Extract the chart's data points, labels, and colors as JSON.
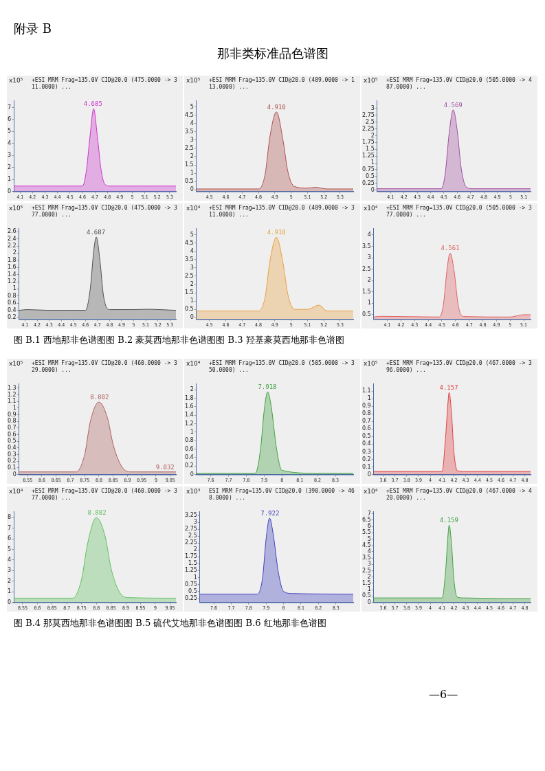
{
  "chart_data": [
    {
      "type": "area",
      "title": "+ESI MRM Frag=135.0V CID@20.0 (475.0000 -> 311.0000) ...",
      "ylabel": "x10⁵",
      "xlim": [
        4.05,
        5.35
      ],
      "ylim": [
        0,
        7.6
      ],
      "xticks": [
        4.1,
        4.2,
        4.3,
        4.4,
        4.5,
        4.6,
        4.7,
        4.8,
        4.9,
        5,
        5.1,
        5.2,
        5.3
      ],
      "yticks": [
        0,
        1,
        2,
        3,
        4,
        5,
        6,
        7
      ],
      "annotations": [
        "附录 B",
        "那非类标准品色谱图",
        {
          "text": "4.685",
          "x": 4.685,
          "y": 6.9
        }
      ],
      "series": [
        {
          "color": "#cc33cc",
          "x": [
            4.05,
            4.5,
            4.6,
            4.63,
            4.66,
            4.69,
            4.72,
            4.75,
            4.78,
            4.82,
            4.9,
            5.35
          ],
          "values": [
            0.45,
            0.45,
            0.45,
            1.6,
            4.5,
            6.9,
            4.6,
            1.8,
            0.6,
            0.45,
            0.45,
            0.45
          ]
        }
      ]
    },
    {
      "type": "area",
      "title": "+ESI MRM Frag=135.0V CID@20.0 (489.0000 -> 113.0000) ...",
      "ylabel": "x10⁵",
      "xlim": [
        4.42,
        5.38
      ],
      "ylim": [
        -0.1,
        5.4
      ],
      "xticks": [
        4.5,
        4.6,
        4.7,
        4.8,
        4.9,
        5,
        5.1,
        5.2,
        5.3
      ],
      "yticks": [
        0,
        0.5,
        1,
        1.5,
        2,
        2.5,
        3,
        3.5,
        4,
        4.5,
        5
      ],
      "annotations": [
        {
          "text": "4.910",
          "x": 4.91,
          "y": 4.7
        }
      ],
      "series": [
        {
          "color": "#b05050",
          "x": [
            4.42,
            4.8,
            4.84,
            4.87,
            4.91,
            4.95,
            4.98,
            5.02,
            5.1,
            5.15,
            5.22,
            5.38
          ],
          "values": [
            0.05,
            0.05,
            0.9,
            3.2,
            4.7,
            3,
            1.1,
            0.2,
            0.1,
            0.15,
            0.05,
            0.05
          ]
        }
      ]
    },
    {
      "type": "area",
      "title": "+ESI MRM Frag=135.0V CID@20.0 (505.0000 -> 487.0000) ...",
      "ylabel": "x10⁵",
      "xlim": [
        4.0,
        5.15
      ],
      "ylim": [
        -0.05,
        3.3
      ],
      "xticks": [
        4.1,
        4.2,
        4.3,
        4.4,
        4.5,
        4.6,
        4.7,
        4.8,
        4.9,
        5,
        5.1
      ],
      "yticks": [
        0,
        0.25,
        0.5,
        0.75,
        1,
        1.25,
        1.5,
        1.75,
        2,
        2.25,
        2.5,
        2.75,
        3
      ],
      "annotations": [
        {
          "text": "4.569",
          "x": 4.569,
          "y": 2.95
        }
      ],
      "series": [
        {
          "color": "#a050a0",
          "x": [
            4.0,
            4.48,
            4.51,
            4.54,
            4.57,
            4.6,
            4.63,
            4.67,
            4.72,
            5.15
          ],
          "values": [
            0.05,
            0.05,
            0.6,
            2.1,
            2.95,
            2.2,
            0.8,
            0.1,
            0.05,
            0.05
          ]
        }
      ]
    },
    {
      "type": "area",
      "title": "+ESI MRM Frag=135.0V CID@20.0 (475.0000 -> 377.0000) ...",
      "ylabel": "x10⁵",
      "xlim": [
        4.05,
        5.35
      ],
      "ylim": [
        0.15,
        2.7
      ],
      "xticks": [
        4.1,
        4.2,
        4.3,
        4.4,
        4.5,
        4.6,
        4.7,
        4.8,
        4.9,
        5,
        5.1,
        5.2,
        5.3
      ],
      "yticks": [
        0.2,
        0.4,
        0.6,
        0.8,
        1,
        1.2,
        1.4,
        1.6,
        1.8,
        2,
        2.2,
        2.4,
        2.6
      ],
      "annotations": [
        {
          "text": "4.687",
          "x": 4.687,
          "y": 2.45
        }
      ],
      "series": [
        {
          "color": "#505050",
          "x": [
            4.05,
            4.12,
            4.3,
            4.6,
            4.64,
            4.67,
            4.69,
            4.72,
            4.75,
            4.8,
            5,
            5.1,
            5.35
          ],
          "values": [
            0.4,
            0.42,
            0.4,
            0.4,
            1.0,
            2.1,
            2.45,
            1.8,
            0.8,
            0.42,
            0.42,
            0.43,
            0.4
          ]
        }
      ]
    },
    {
      "type": "area",
      "title": "+ESI MRM Frag=135.0V CID@20.0 (489.0000 -> 311.0000) ...",
      "ylabel": "x10⁴",
      "xlim": [
        4.42,
        5.38
      ],
      "ylim": [
        -0.1,
        5.4
      ],
      "xticks": [
        4.5,
        4.6,
        4.7,
        4.8,
        4.9,
        5,
        5.1,
        5.2,
        5.3
      ],
      "yticks": [
        0,
        0.5,
        1,
        1.5,
        2,
        2.5,
        3,
        3.5,
        4,
        4.5,
        5
      ],
      "annotations": [
        {
          "text": "4.910",
          "x": 4.91,
          "y": 4.85
        }
      ],
      "series": [
        {
          "color": "#e8a040",
          "x": [
            4.42,
            4.8,
            4.84,
            4.87,
            4.91,
            4.95,
            4.98,
            5.02,
            5.1,
            5.17,
            5.22,
            5.38
          ],
          "values": [
            0.4,
            0.4,
            1.2,
            3.4,
            4.85,
            3.3,
            1.4,
            0.5,
            0.5,
            0.75,
            0.4,
            0.4
          ]
        }
      ]
    },
    {
      "type": "area",
      "title": "+ESI MRM Frag=135.0V CID@20.0 (505.0000 -> 377.0000) ...",
      "ylabel": "x10⁴",
      "xlim": [
        4.0,
        5.15
      ],
      "ylim": [
        0.3,
        4.3
      ],
      "xticks": [
        4.1,
        4.2,
        4.3,
        4.4,
        4.5,
        4.6,
        4.7,
        4.8,
        4.9,
        5,
        5.1
      ],
      "yticks": [
        0.5,
        1,
        1.5,
        2,
        2.5,
        3,
        3.5,
        4
      ],
      "annotations": [
        {
          "text": "4.561",
          "x": 4.561,
          "y": 3.2
        },
        "图 B.1  西地那非色谱图图 B.2 豪莫西地那非色谱图图 B.3 羟基豪莫西地那非色谱图"
      ],
      "series": [
        {
          "color": "#e06060",
          "x": [
            4.0,
            4.05,
            4.48,
            4.51,
            4.54,
            4.56,
            4.59,
            4.62,
            4.66,
            5.0,
            5.1,
            5.15
          ],
          "values": [
            0.4,
            0.43,
            0.4,
            0.9,
            2.6,
            3.2,
            2.4,
            0.9,
            0.42,
            0.4,
            0.5,
            0.5
          ]
        }
      ]
    },
    {
      "type": "area",
      "title": "+ESI MRM Frag=135.0V CID@20.0 (460.0000 -> 329.0000) ...",
      "ylabel": "x10⁵",
      "xlim": [
        8.52,
        9.07
      ],
      "ylim": [
        0,
        1.37
      ],
      "xticks": [
        8.55,
        8.6,
        8.65,
        8.7,
        8.75,
        8.8,
        8.85,
        8.9,
        8.95,
        9,
        9.05
      ],
      "yticks": [
        0,
        0.1,
        0.2,
        0.3,
        0.4,
        0.5,
        0.6,
        0.7,
        0.8,
        0.9,
        1,
        1.1,
        1.2,
        1.3
      ],
      "annotations": [
        {
          "text": "8.802",
          "x": 8.802,
          "y": 1.09
        },
        {
          "text": "9.032",
          "x": 9.032,
          "y": 0.04
        }
      ],
      "series": [
        {
          "color": "#b06060",
          "x": [
            8.52,
            8.72,
            8.75,
            8.77,
            8.8,
            8.83,
            8.85,
            8.88,
            8.91,
            9.07
          ],
          "values": [
            0.04,
            0.04,
            0.3,
            0.8,
            1.09,
            0.85,
            0.45,
            0.12,
            0.04,
            0.04
          ]
        }
      ]
    },
    {
      "type": "area",
      "title": "+ESI MRM Frag=135.0V CID@20.0 (505.0000 -> 350.0000) ...",
      "ylabel": "x10⁴",
      "xlim": [
        7.52,
        8.4
      ],
      "ylim": [
        0,
        2.15
      ],
      "xticks": [
        7.6,
        7.7,
        7.8,
        7.9,
        8,
        8.1,
        8.2,
        8.3
      ],
      "yticks": [
        0,
        0.2,
        0.4,
        0.6,
        0.8,
        1,
        1.2,
        1.4,
        1.6,
        1.8,
        2
      ],
      "annotations": [
        {
          "text": "7.918",
          "x": 7.918,
          "y": 1.95
        }
      ],
      "series": [
        {
          "color": "#40a040",
          "x": [
            7.52,
            7.85,
            7.88,
            7.9,
            7.92,
            7.94,
            7.97,
            8.0,
            8.2,
            8.4
          ],
          "values": [
            0.03,
            0.03,
            0.6,
            1.5,
            1.95,
            1.6,
            0.6,
            0.1,
            0.03,
            0.03
          ]
        }
      ]
    },
    {
      "type": "area",
      "title": "+ESI MRM Frag=135.0V CID@20.0 (467.0000 -> 396.0000) ...",
      "ylabel": "x10⁵",
      "xlim": [
        3.52,
        4.85
      ],
      "ylim": [
        0,
        1.2
      ],
      "xticks": [
        3.6,
        3.7,
        3.8,
        3.9,
        4,
        4.1,
        4.2,
        4.3,
        4.4,
        4.5,
        4.6,
        4.7,
        4.8
      ],
      "yticks": [
        0,
        0.1,
        0.2,
        0.3,
        0.4,
        0.5,
        0.6,
        0.7,
        0.8,
        0.9,
        1,
        1.1
      ],
      "annotations": [
        {
          "text": "4.157",
          "x": 4.157,
          "y": 1.08
        }
      ],
      "series": [
        {
          "color": "#e04040",
          "x": [
            3.52,
            4.1,
            4.13,
            4.15,
            4.16,
            4.18,
            4.2,
            4.23,
            4.3,
            4.85
          ],
          "values": [
            0.04,
            0.04,
            0.5,
            0.95,
            1.08,
            0.8,
            0.3,
            0.05,
            0.04,
            0.04
          ]
        }
      ]
    },
    {
      "type": "area",
      "title": "+ESI MRM Frag=135.0V CID@20.0 (460.0000 -> 377.0000) ...",
      "ylabel": "x10⁴",
      "xlim": [
        8.52,
        9.07
      ],
      "ylim": [
        0,
        8.6
      ],
      "xticks": [
        8.55,
        8.6,
        8.65,
        8.7,
        8.75,
        8.8,
        8.85,
        8.9,
        8.95,
        9,
        9.05
      ],
      "yticks": [
        0,
        1,
        2,
        3,
        4,
        5,
        6,
        7,
        8
      ],
      "annotations": [
        {
          "text": "8.802",
          "x": 8.802,
          "y": 8
        }
      ],
      "series": [
        {
          "color": "#60c060",
          "x": [
            8.52,
            8.72,
            8.75,
            8.77,
            8.8,
            8.83,
            8.85,
            8.88,
            8.91,
            9.07
          ],
          "values": [
            0.4,
            0.4,
            2.2,
            5.5,
            8,
            6.2,
            3.2,
            0.9,
            0.45,
            0.4
          ]
        }
      ]
    },
    {
      "type": "area",
      "title": "ESI MRM Frag=135.0V CID@20.0 (390.0000 -> 468.0000) ...",
      "ylabel": "x10³",
      "xlim": [
        7.52,
        8.4
      ],
      "ylim": [
        0.1,
        3.4
      ],
      "xticks": [
        7.6,
        7.7,
        7.8,
        7.9,
        8,
        8.1,
        8.2,
        8.3
      ],
      "yticks": [
        0.25,
        0.5,
        0.75,
        1,
        1.25,
        1.5,
        1.75,
        2,
        2.25,
        2.5,
        2.75,
        3,
        3.25
      ],
      "annotations": [
        {
          "text": "7.922",
          "x": 7.922,
          "y": 3.15
        }
      ],
      "series": [
        {
          "color": "#4040c0",
          "x": [
            7.52,
            7.85,
            7.88,
            7.9,
            7.92,
            7.94,
            7.97,
            8.0,
            8.05,
            8.4
          ],
          "values": [
            0.4,
            0.4,
            1.0,
            2.4,
            3.15,
            2.6,
            1.2,
            0.5,
            0.42,
            0.4
          ]
        }
      ]
    },
    {
      "type": "area",
      "title": "+ESI MRM Frag=135.0V CID@20.0 (467.0000 -> 420.0000) ...",
      "ylabel": "x10⁴",
      "xlim": [
        3.52,
        4.85
      ],
      "ylim": [
        0,
        7.2
      ],
      "xticks": [
        3.6,
        3.7,
        3.8,
        3.9,
        4,
        4.1,
        4.2,
        4.3,
        4.4,
        4.5,
        4.6,
        4.7,
        4.8
      ],
      "yticks": [
        0,
        0.5,
        1,
        1.5,
        2,
        2.5,
        3,
        3.5,
        4,
        4.5,
        5,
        5.5,
        6,
        6.5,
        7
      ],
      "annotations": [
        {
          "text": "4.159",
          "x": 4.159,
          "y": 6.1
        },
        "图 B.4  那莫西地那非色谱图图 B.5  硫代艾地那非色谱图图 B.6  红地那非色谱图",
        "—6—"
      ],
      "series": [
        {
          "color": "#40a040",
          "x": [
            3.52,
            4.1,
            4.13,
            4.15,
            4.16,
            4.18,
            4.2,
            4.23,
            4.3,
            4.6,
            4.85
          ],
          "values": [
            0.35,
            0.35,
            2.5,
            5.3,
            6.1,
            4.6,
            1.8,
            0.4,
            0.35,
            0.3,
            0.3
          ]
        }
      ]
    }
  ]
}
